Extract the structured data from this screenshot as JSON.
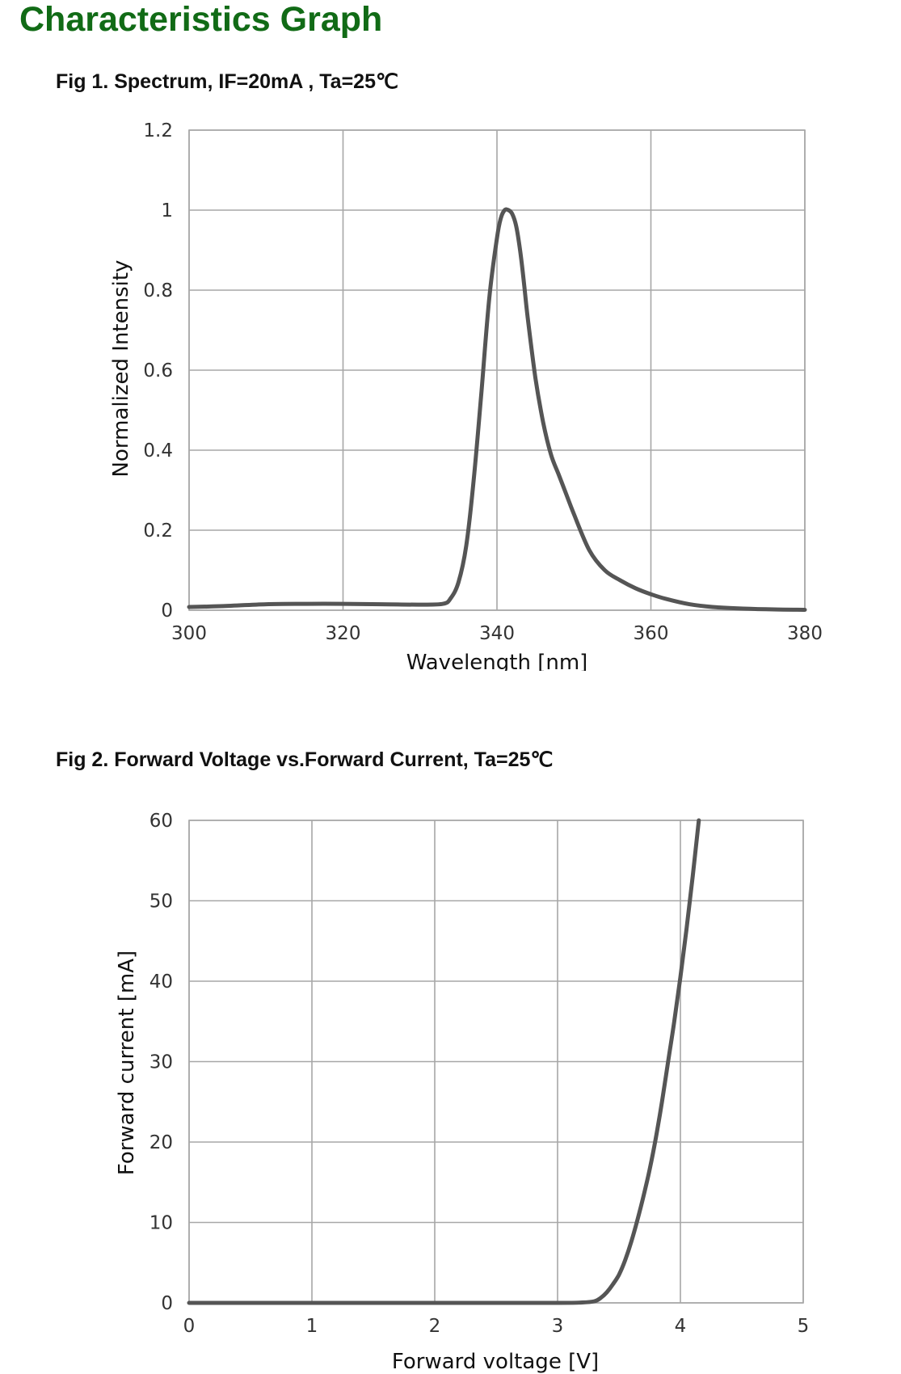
{
  "page": {
    "title": "Characteristics Graph",
    "title_color": "#116b16"
  },
  "chart_data": [
    {
      "type": "line",
      "title": "Fig 1. Spectrum, IF=20mA , Ta=25℃",
      "xlabel": "Wavelength [nm]",
      "ylabel": "Normalized Intensity",
      "xlim": [
        300,
        380
      ],
      "ylim": [
        0,
        1.2
      ],
      "xticks": [
        "300",
        "320",
        "340",
        "360",
        "380"
      ],
      "yticks": [
        "0",
        "0.2",
        "0.4",
        "0.6",
        "0.8",
        "1",
        "1.2"
      ],
      "xtick_values": [
        300,
        320,
        340,
        360,
        380
      ],
      "ytick_values": [
        0,
        0.2,
        0.4,
        0.6,
        0.8,
        1.0,
        1.2
      ],
      "grid": true,
      "line_color": "#555555",
      "grid_color": "#a7a7a7",
      "series": [
        {
          "x": [
            300,
            304,
            310,
            315,
            320,
            325,
            330,
            333,
            334,
            335,
            336,
            337,
            338,
            339,
            340,
            340.5,
            341,
            341.5,
            342,
            342.5,
            343,
            343.5,
            344,
            345,
            346,
            347,
            348,
            349,
            350,
            352,
            354,
            356,
            358,
            360,
            362,
            365,
            368,
            372,
            376,
            380
          ],
          "y": [
            0.008,
            0.01,
            0.015,
            0.016,
            0.016,
            0.015,
            0.014,
            0.016,
            0.03,
            0.07,
            0.16,
            0.33,
            0.55,
            0.78,
            0.93,
            0.98,
            1.0,
            1.0,
            0.99,
            0.96,
            0.9,
            0.82,
            0.73,
            0.58,
            0.47,
            0.39,
            0.34,
            0.29,
            0.24,
            0.15,
            0.1,
            0.075,
            0.055,
            0.04,
            0.028,
            0.015,
            0.008,
            0.004,
            0.002,
            0.001
          ]
        }
      ]
    },
    {
      "type": "line",
      "title": "Fig 2. Forward Voltage vs.Forward Current, Ta=25℃",
      "xlabel": "Forward voltage [V]",
      "ylabel": "Forward current [mA]",
      "xlim": [
        0,
        5
      ],
      "ylim": [
        0,
        60
      ],
      "xticks": [
        "0",
        "1",
        "2",
        "3",
        "4",
        "5"
      ],
      "yticks": [
        "0",
        "10",
        "20",
        "30",
        "40",
        "50",
        "60"
      ],
      "xtick_values": [
        0,
        1,
        2,
        3,
        4,
        5
      ],
      "ytick_values": [
        0,
        10,
        20,
        30,
        40,
        50,
        60
      ],
      "grid": true,
      "line_color": "#555555",
      "grid_color": "#a7a7a7",
      "series": [
        {
          "x": [
            0,
            1,
            2,
            3,
            3.2,
            3.3,
            3.35,
            3.4,
            3.45,
            3.5,
            3.55,
            3.6,
            3.65,
            3.7,
            3.75,
            3.8,
            3.85,
            3.9,
            3.95,
            4.0,
            4.05,
            4.1,
            4.15
          ],
          "y": [
            0,
            0,
            0,
            0,
            0.05,
            0.2,
            0.6,
            1.3,
            2.3,
            3.5,
            5.3,
            7.6,
            10.3,
            13.3,
            16.6,
            20.5,
            25,
            30,
            35,
            40.5,
            46.5,
            53,
            60
          ]
        }
      ]
    }
  ]
}
